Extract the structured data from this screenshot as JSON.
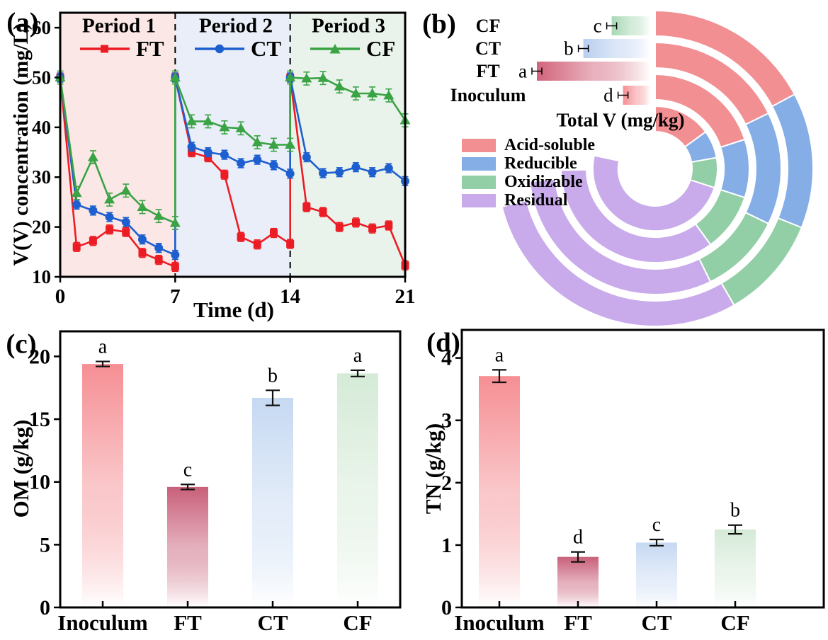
{
  "chart_data": [
    {
      "id": "a",
      "type": "line",
      "panel_label": "(a)",
      "xlabel": "Time (d)",
      "ylabel": "V(V) concentration (mg/L)",
      "xlim": [
        0,
        21
      ],
      "ylim": [
        10,
        63
      ],
      "xticks": [
        0,
        7,
        14,
        21
      ],
      "yticks": [
        10,
        20,
        30,
        40,
        50,
        60
      ],
      "dividers": [
        7,
        14
      ],
      "periods": [
        {
          "label": "Period 1",
          "range": [
            0,
            7
          ],
          "bg": "#FBE8E6"
        },
        {
          "label": "Period 2",
          "range": [
            7,
            14
          ],
          "bg": "#E9EEF8"
        },
        {
          "label": "Period 3",
          "range": [
            14,
            21
          ],
          "bg": "#EAF3EB"
        }
      ],
      "series": [
        {
          "name": "FT",
          "color": "#EC1C24",
          "marker": "square",
          "err": 0.9,
          "points": [
            [
              0,
              50
            ],
            [
              1,
              16
            ],
            [
              2,
              17.2
            ],
            [
              3,
              19.5
            ],
            [
              4,
              19
            ],
            [
              5,
              14.8
            ],
            [
              6,
              13.4
            ],
            [
              7,
              12
            ],
            [
              7,
              50
            ],
            [
              8,
              35
            ],
            [
              9,
              34
            ],
            [
              10,
              30.5
            ],
            [
              11,
              18
            ],
            [
              12,
              16.5
            ],
            [
              13,
              18.8
            ],
            [
              14,
              16.6
            ],
            [
              14,
              50
            ],
            [
              15,
              24
            ],
            [
              16,
              23
            ],
            [
              17,
              20
            ],
            [
              18,
              20.9
            ],
            [
              19,
              19.7
            ],
            [
              20,
              20.3
            ],
            [
              21,
              12.3
            ]
          ]
        },
        {
          "name": "CT",
          "color": "#1E5FCF",
          "marker": "circle",
          "err": 0.9,
          "points": [
            [
              0,
              50
            ],
            [
              1,
              24.5
            ],
            [
              2,
              23.3
            ],
            [
              3,
              22
            ],
            [
              4,
              21
            ],
            [
              5,
              17.5
            ],
            [
              6,
              15.8
            ],
            [
              7,
              14.4
            ],
            [
              7,
              50
            ],
            [
              8,
              36.1
            ],
            [
              9,
              35
            ],
            [
              10,
              34.5
            ],
            [
              11,
              32.8
            ],
            [
              12,
              33.5
            ],
            [
              13,
              32.4
            ],
            [
              14,
              30.7
            ],
            [
              14,
              50
            ],
            [
              15,
              34
            ],
            [
              16,
              30.8
            ],
            [
              17,
              31
            ],
            [
              18,
              32
            ],
            [
              19,
              31
            ],
            [
              20,
              31.8
            ],
            [
              21,
              29.2
            ]
          ]
        },
        {
          "name": "CF",
          "color": "#3AA344",
          "marker": "triangle",
          "err": 1.3,
          "points": [
            [
              0,
              50
            ],
            [
              1,
              26.8
            ],
            [
              2,
              34
            ],
            [
              3,
              25.5
            ],
            [
              4,
              27.3
            ],
            [
              5,
              24
            ],
            [
              6,
              22.2
            ],
            [
              7,
              20.8
            ],
            [
              7,
              50
            ],
            [
              8,
              41.2
            ],
            [
              9,
              41.2
            ],
            [
              10,
              40
            ],
            [
              11,
              39.8
            ],
            [
              12,
              37
            ],
            [
              13,
              36.5
            ],
            [
              14,
              36.5
            ],
            [
              14,
              50
            ],
            [
              15,
              49.8
            ],
            [
              16,
              49.9
            ],
            [
              17,
              48.2
            ],
            [
              18,
              46.8
            ],
            [
              19,
              46.8
            ],
            [
              20,
              46.4
            ],
            [
              21,
              41.4
            ]
          ]
        }
      ]
    },
    {
      "id": "b",
      "type": "bar+sunburst",
      "panel_label": "(b)",
      "bar_axis_label": "Total V (mg/kg)",
      "fraction_legend": [
        {
          "label": "Acid-soluble",
          "color": "#F28F93"
        },
        {
          "label": "Reducible",
          "color": "#85ADE6"
        },
        {
          "label": "Oxidizable",
          "color": "#92CEA6"
        },
        {
          "label": "Residual",
          "color": "#C9ABEB"
        }
      ],
      "rows": [
        {
          "name": "CF",
          "letter": "c",
          "relative_total_v": 0.34,
          "bar_color": "#A8D8B4",
          "ring_segments_deg": [
            62,
            50,
            38,
            106
          ]
        },
        {
          "name": "CT",
          "letter": "b",
          "relative_total_v": 0.59,
          "bar_color": "#B9CFF0",
          "ring_segments_deg": [
            64,
            52,
            38,
            110
          ]
        },
        {
          "name": "FT",
          "letter": "a",
          "relative_total_v": 1.0,
          "bar_color": "#D2647C",
          "ring_segments_deg": [
            72,
            36,
            36,
            125
          ]
        },
        {
          "name": "Inoculum",
          "letter": "d",
          "relative_total_v": 0.24,
          "bar_color": "#F58F94",
          "ring_segments_deg": [
            54,
            26,
            28,
            174
          ]
        }
      ]
    },
    {
      "id": "c",
      "type": "bar",
      "panel_label": "(c)",
      "ylabel": "OM (g/kg)",
      "ylim": [
        0,
        22
      ],
      "yticks": [
        0,
        5,
        10,
        15,
        20
      ],
      "categories": [
        "Inoculum",
        "FT",
        "CT",
        "CF"
      ],
      "values": [
        19.4,
        9.6,
        16.7,
        18.65
      ],
      "errors": [
        0.2,
        0.2,
        0.6,
        0.25
      ],
      "letters": [
        "a",
        "c",
        "b",
        "a"
      ],
      "bar_colors": [
        "#F58F94",
        "#C9607A",
        "#C6D9F2",
        "#D5EAD7"
      ]
    },
    {
      "id": "d",
      "type": "bar",
      "panel_label": "(d)",
      "ylabel": "TN (g/kg)",
      "ylim": [
        0,
        4.45
      ],
      "yticks": [
        0,
        1,
        2,
        3,
        4
      ],
      "categories": [
        "Inoculum",
        "FT",
        "CT",
        "CF"
      ],
      "values": [
        3.71,
        0.81,
        1.04,
        1.25
      ],
      "errors": [
        0.1,
        0.08,
        0.05,
        0.07
      ],
      "letters": [
        "a",
        "d",
        "c",
        "b"
      ],
      "bar_colors": [
        "#F58F94",
        "#C9607A",
        "#C6D9F2",
        "#D5EAD7"
      ]
    }
  ]
}
